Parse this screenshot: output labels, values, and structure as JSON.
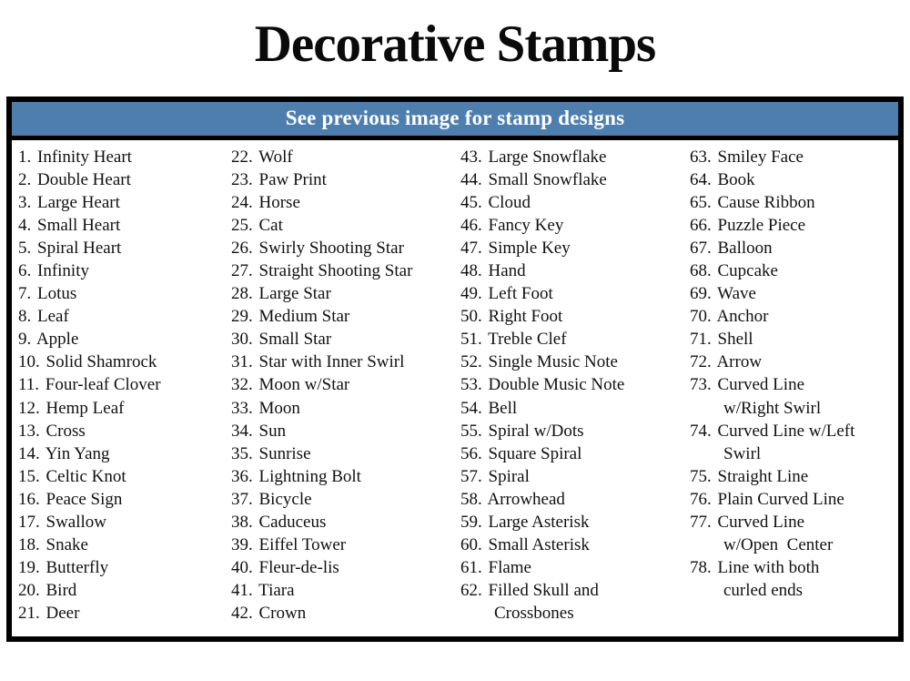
{
  "title": "Decorative Stamps",
  "banner": {
    "text": "See previous image for stamp designs"
  },
  "colors": {
    "banner_bg": "#4d7ead",
    "banner_text": "#ffffff",
    "border": "#000000",
    "text": "#111111"
  },
  "columns": [
    {
      "items": [
        {
          "num": "1.",
          "lines": [
            "Infinity Heart"
          ]
        },
        {
          "num": "2.",
          "lines": [
            "Double Heart"
          ]
        },
        {
          "num": "3.",
          "lines": [
            "Large Heart"
          ]
        },
        {
          "num": "4.",
          "lines": [
            "Small Heart"
          ]
        },
        {
          "num": "5.",
          "lines": [
            "Spiral Heart"
          ]
        },
        {
          "num": "6.",
          "lines": [
            "Infinity"
          ]
        },
        {
          "num": "7.",
          "lines": [
            "Lotus"
          ]
        },
        {
          "num": "8.",
          "lines": [
            "Leaf"
          ]
        },
        {
          "num": "9.",
          "lines": [
            "Apple"
          ]
        },
        {
          "num": "10.",
          "lines": [
            "Solid Shamrock"
          ]
        },
        {
          "num": "11.",
          "lines": [
            "Four-leaf Clover"
          ]
        },
        {
          "num": "12.",
          "lines": [
            "Hemp Leaf"
          ]
        },
        {
          "num": "13.",
          "lines": [
            "Cross"
          ]
        },
        {
          "num": "14.",
          "lines": [
            "Yin Yang"
          ]
        },
        {
          "num": "15.",
          "lines": [
            "Celtic Knot"
          ]
        },
        {
          "num": "16.",
          "lines": [
            "Peace Sign"
          ]
        },
        {
          "num": "17.",
          "lines": [
            "Swallow"
          ]
        },
        {
          "num": "18.",
          "lines": [
            "Snake"
          ]
        },
        {
          "num": "19.",
          "lines": [
            "Butterfly"
          ]
        },
        {
          "num": "20.",
          "lines": [
            "Bird"
          ]
        },
        {
          "num": "21.",
          "lines": [
            "Deer"
          ]
        }
      ]
    },
    {
      "items": [
        {
          "num": "22.",
          "lines": [
            "Wolf"
          ]
        },
        {
          "num": "23.",
          "lines": [
            "Paw Print"
          ]
        },
        {
          "num": "24.",
          "lines": [
            "Horse"
          ]
        },
        {
          "num": "25.",
          "lines": [
            "Cat"
          ]
        },
        {
          "num": "26.",
          "lines": [
            "Swirly Shooting Star"
          ]
        },
        {
          "num": "27.",
          "lines": [
            "Straight Shooting Star"
          ]
        },
        {
          "num": "28.",
          "lines": [
            "Large Star"
          ]
        },
        {
          "num": "29.",
          "lines": [
            "Medium Star"
          ]
        },
        {
          "num": "30.",
          "lines": [
            "Small Star"
          ]
        },
        {
          "num": "31.",
          "lines": [
            "Star with Inner Swirl"
          ]
        },
        {
          "num": "32.",
          "lines": [
            "Moon w/Star"
          ]
        },
        {
          "num": "33.",
          "lines": [
            "Moon"
          ]
        },
        {
          "num": "34.",
          "lines": [
            "Sun"
          ]
        },
        {
          "num": "35.",
          "lines": [
            "Sunrise"
          ]
        },
        {
          "num": "36.",
          "lines": [
            "Lightning Bolt"
          ]
        },
        {
          "num": "37.",
          "lines": [
            "Bicycle"
          ]
        },
        {
          "num": "38.",
          "lines": [
            "Caduceus"
          ]
        },
        {
          "num": "39.",
          "lines": [
            "Eiffel Tower"
          ]
        },
        {
          "num": "40.",
          "lines": [
            "Fleur-de-lis"
          ]
        },
        {
          "num": "41.",
          "lines": [
            "Tiara"
          ]
        },
        {
          "num": "42.",
          "lines": [
            "Crown"
          ]
        }
      ]
    },
    {
      "items": [
        {
          "num": "43.",
          "lines": [
            "Large Snowflake"
          ]
        },
        {
          "num": "44.",
          "lines": [
            "Small Snowflake"
          ]
        },
        {
          "num": "45.",
          "lines": [
            "Cloud"
          ]
        },
        {
          "num": "46.",
          "lines": [
            "Fancy Key"
          ]
        },
        {
          "num": "47.",
          "lines": [
            "Simple Key"
          ]
        },
        {
          "num": "48.",
          "lines": [
            "Hand"
          ]
        },
        {
          "num": "49.",
          "lines": [
            "Left Foot"
          ]
        },
        {
          "num": "50.",
          "lines": [
            "Right Foot"
          ]
        },
        {
          "num": "51.",
          "lines": [
            "Treble Clef"
          ]
        },
        {
          "num": "52.",
          "lines": [
            "Single Music Note"
          ]
        },
        {
          "num": "53.",
          "lines": [
            "Double Music Note"
          ]
        },
        {
          "num": "54.",
          "lines": [
            "Bell"
          ]
        },
        {
          "num": "55.",
          "lines": [
            "Spiral w/Dots"
          ]
        },
        {
          "num": "56.",
          "lines": [
            "Square Spiral"
          ]
        },
        {
          "num": "57.",
          "lines": [
            "Spiral"
          ]
        },
        {
          "num": "58.",
          "lines": [
            "Arrowhead"
          ]
        },
        {
          "num": "59.",
          "lines": [
            "Large Asterisk"
          ]
        },
        {
          "num": "60.",
          "lines": [
            "Small Asterisk"
          ]
        },
        {
          "num": "61.",
          "lines": [
            "Flame"
          ]
        },
        {
          "num": "62.",
          "lines": [
            "Filled Skull and",
            "Crossbones"
          ]
        }
      ]
    },
    {
      "items": [
        {
          "num": "63.",
          "lines": [
            "Smiley Face"
          ]
        },
        {
          "num": "64.",
          "lines": [
            "Book"
          ]
        },
        {
          "num": "65.",
          "lines": [
            "Cause Ribbon"
          ]
        },
        {
          "num": "66.",
          "lines": [
            "Puzzle Piece"
          ]
        },
        {
          "num": "67.",
          "lines": [
            "Balloon"
          ]
        },
        {
          "num": "68.",
          "lines": [
            "Cupcake"
          ]
        },
        {
          "num": "69.",
          "lines": [
            "Wave"
          ]
        },
        {
          "num": "70.",
          "lines": [
            "Anchor"
          ]
        },
        {
          "num": "71.",
          "lines": [
            "Shell"
          ]
        },
        {
          "num": "72.",
          "lines": [
            "Arrow"
          ]
        },
        {
          "num": "73.",
          "lines": [
            "Curved Line",
            "w/Right Swirl"
          ]
        },
        {
          "num": "74.",
          "lines": [
            "Curved Line w/Left",
            "Swirl"
          ]
        },
        {
          "num": "75.",
          "lines": [
            "Straight Line"
          ]
        },
        {
          "num": "76.",
          "lines": [
            "Plain Curved Line"
          ]
        },
        {
          "num": "77.",
          "lines": [
            "Curved Line",
            "w/Open  Center"
          ]
        },
        {
          "num": "78.",
          "lines": [
            "Line with both",
            "curled ends"
          ]
        }
      ]
    }
  ]
}
